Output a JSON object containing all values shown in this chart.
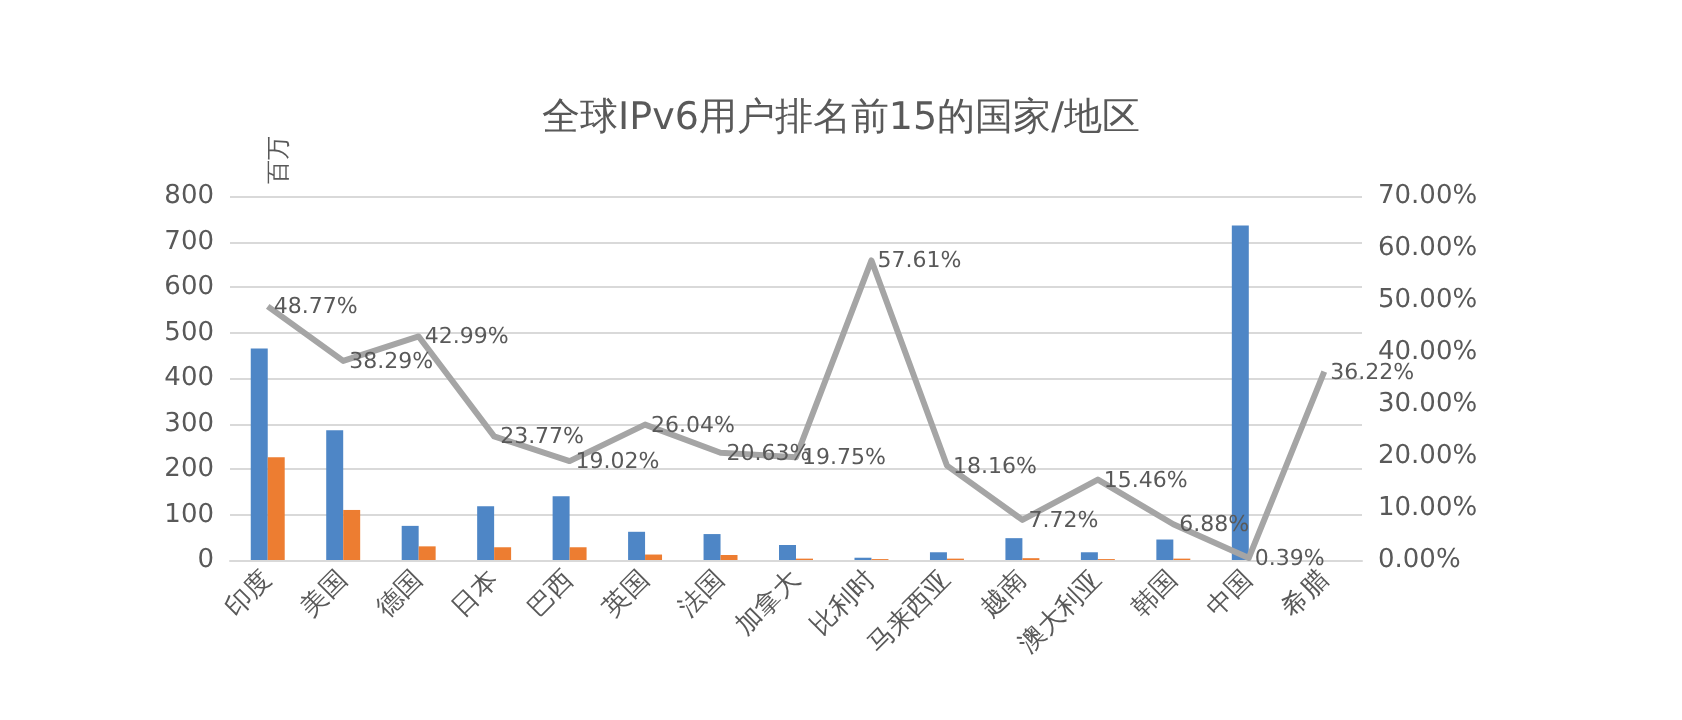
{
  "chart_data": {
    "type": "bar",
    "title": "全球IPv6用户排名前15的国家/地区",
    "ylabel": "百万",
    "categories": [
      "印度",
      "美国",
      "德国",
      "日本",
      "巴西",
      "英国",
      "法国",
      "加拿大",
      "比利时",
      "马来西亚",
      "越南",
      "澳大利亚",
      "韩国",
      "中国",
      "希腊"
    ],
    "series": [
      {
        "color": "#4e86c6",
        "values": [
          465,
          285,
          75,
          118,
          140,
          62,
          57,
          33,
          5,
          17,
          48,
          17,
          45,
          735,
          null
        ]
      },
      {
        "color": "#ed7d31",
        "values": [
          226,
          110,
          30,
          28,
          28,
          12,
          11,
          3,
          2,
          3,
          4,
          2,
          3,
          null,
          null
        ]
      },
      {
        "type": "line",
        "axis": "y2",
        "color": "#a5a5a5",
        "values": [
          48.77,
          38.29,
          42.99,
          23.77,
          19.02,
          26.04,
          20.63,
          19.75,
          57.61,
          18.16,
          7.72,
          15.46,
          6.88,
          0.39,
          36.22
        ],
        "value_labels": [
          "48.77%",
          "38.29%",
          "42.99%",
          "23.77%",
          "19.02%",
          "26.04%",
          "20.63%",
          "19.75%",
          "57.61%",
          "18.16%",
          "7.72%",
          "15.46%",
          "6.88%",
          "0.39%",
          "36.22%"
        ]
      }
    ],
    "ylim": [
      0,
      800
    ],
    "yticks": [
      0,
      100,
      200,
      300,
      400,
      500,
      600,
      700,
      800
    ],
    "y2lim": [
      0,
      70
    ],
    "y2ticks": [
      {
        "value": 0,
        "label": "0.00%"
      },
      {
        "value": 10,
        "label": "10.00%"
      },
      {
        "value": 20,
        "label": "20.00%"
      },
      {
        "value": 30,
        "label": "30.00%"
      },
      {
        "value": 40,
        "label": "40.00%"
      },
      {
        "value": 50,
        "label": "50.00%"
      },
      {
        "value": 60,
        "label": "60.00%"
      },
      {
        "value": 70,
        "label": "70.00%"
      }
    ],
    "grid": "y",
    "marker": "none"
  }
}
